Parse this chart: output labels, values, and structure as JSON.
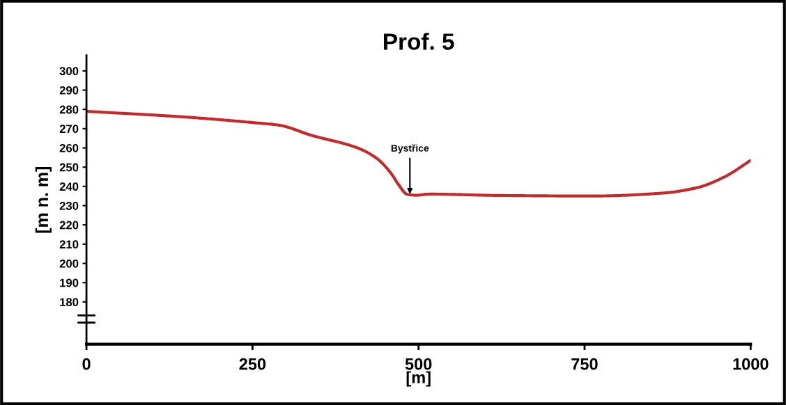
{
  "chart_data": {
    "type": "line",
    "title": "Prof. 5",
    "xlabel": "[m]",
    "ylabel": "[m n. m]",
    "x": [
      0,
      150,
      255,
      290,
      339,
      408,
      437,
      457,
      471,
      482,
      496,
      517,
      618,
      762,
      867,
      919,
      961,
      1000
    ],
    "series": [
      {
        "color": "#c8282a",
        "values": [
          279,
          276,
          273,
          271.8,
          266.5,
          260,
          254.6,
          247.5,
          240.4,
          236,
          235.4,
          236,
          235.3,
          235,
          236.5,
          239.3,
          245,
          253.5
        ]
      }
    ],
    "annotations": [
      {
        "text": "Bystřice",
        "x": 487,
        "y": 236
      }
    ],
    "xlim": [
      0,
      1000
    ],
    "xticks": [
      0,
      250,
      500,
      750,
      1000
    ],
    "ylim": [
      158,
      308
    ],
    "yticks": [
      180,
      190,
      200,
      210,
      220,
      230,
      240,
      250,
      260,
      270,
      280,
      290,
      300
    ],
    "grid": false,
    "legend": false,
    "marker": "none",
    "line_style": "solid"
  }
}
